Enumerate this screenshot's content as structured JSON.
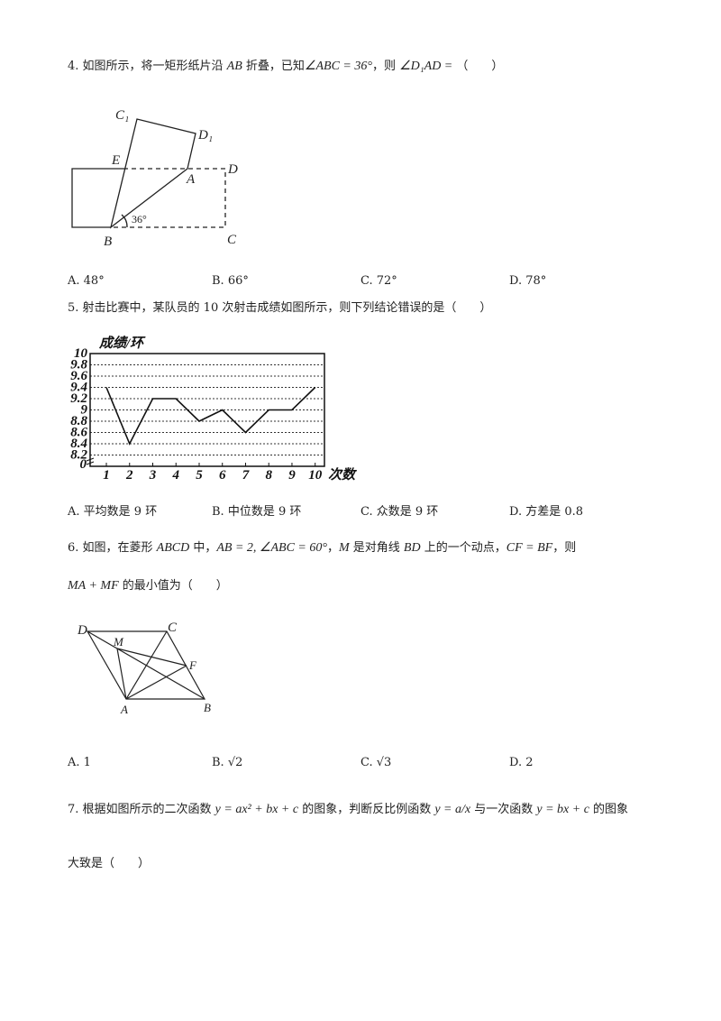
{
  "questions": [
    {
      "lines": [
        [
          "4. 如图所示，将一矩形纸片沿 ",
          {
            "math": "AB"
          },
          " 折叠，已知",
          {
            "math": "∠ABC = 36°"
          },
          "，则 ",
          {
            "math": "∠D₁AD ="
          },
          "  （　　）"
        ]
      ],
      "figure": {
        "labels": [
          "C₁",
          "D₁",
          "E",
          "A",
          "D",
          "B",
          "C",
          "36°"
        ]
      },
      "options": [
        "A. 48°",
        "B. 66°",
        "C. 72°",
        "D. 78°"
      ]
    },
    {
      "lines": [
        [
          "5. 射击比赛中，某队员的 10 次射击成绩如图所示，则下列结论错误的是（　　）"
        ]
      ],
      "options": [
        "A. 平均数是 9 环",
        "B. 中位数是 9 环",
        "C. 众数是 9 环",
        "D. 方差是 0.8"
      ]
    },
    {
      "lines": [
        [
          "6. 如图，在菱形 ",
          {
            "math": "ABCD"
          },
          " 中，",
          {
            "math": "AB = 2, ∠ABC = 60°"
          },
          "，",
          {
            "math": "M"
          },
          " 是对角线 ",
          {
            "math": "BD"
          },
          " 上的一个动点，",
          {
            "math": "CF = BF"
          },
          "，则"
        ],
        [
          {
            "math": "MA + MF"
          },
          " 的最小值为（　　）"
        ]
      ],
      "figure": {
        "labels": [
          "D",
          "C",
          "M",
          "F",
          "A",
          "B"
        ]
      },
      "options": [
        "A. 1",
        "B. √2",
        "C. √3",
        "D. 2"
      ]
    },
    {
      "lines": [
        [
          "7. 根据如图所示的二次函数 ",
          {
            "math": "y = ax² + bx + c"
          },
          " 的图象，判断反比例函数 ",
          {
            "math": "y = a/x"
          },
          " 与一次函数 ",
          {
            "math": "y = bx + c"
          },
          " 的图象"
        ],
        [
          "大致是（　　）"
        ]
      ]
    }
  ],
  "chart_data": {
    "type": "line",
    "y_label": "成绩/环",
    "x_label": "次数",
    "x": [
      1,
      2,
      3,
      4,
      5,
      6,
      7,
      8,
      9,
      10
    ],
    "values": [
      9.4,
      8.4,
      9.2,
      9.2,
      8.8,
      9.0,
      8.6,
      9.0,
      9.0,
      9.4
    ],
    "color": "#111111",
    "xlim": [
      0.3,
      10.4
    ],
    "xticks": [
      1,
      2,
      3,
      4,
      5,
      6,
      7,
      8,
      9,
      10
    ],
    "ylim": [
      8,
      10
    ],
    "yticks": [
      8.2,
      8.4,
      8.6,
      8.8,
      9,
      9.2,
      9.4,
      9.6,
      9.8,
      10
    ],
    "axis_break_label": "0",
    "grid": true
  }
}
